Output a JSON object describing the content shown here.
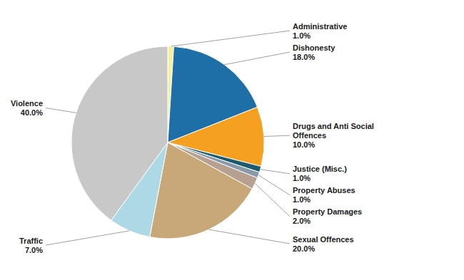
{
  "chart_data": {
    "type": "pie",
    "categories": [
      "Administrative",
      "Dishonesty",
      "Drugs and Anti Social\nOffences",
      "Justice (Misc.)",
      "Property Abuses",
      "Property Damages",
      "Sexual Offences",
      "Traffic",
      "Violence"
    ],
    "values": [
      1.0,
      18.0,
      10.0,
      1.0,
      1.0,
      2.0,
      20.0,
      7.0,
      40.0
    ],
    "value_labels": [
      "1.0%",
      "18.0%",
      "10.0%",
      "1.0%",
      "1.0%",
      "2.0%",
      "20.0%",
      "7.0%",
      "40.0%"
    ],
    "colors": [
      "#F5F0A0",
      "#1E6EA8",
      "#F5A020",
      "#1A5B6E",
      "#8899AA",
      "#B8A090",
      "#C8A878",
      "#ADD8E6",
      "#C8C8C8"
    ],
    "data_labels": true
  }
}
